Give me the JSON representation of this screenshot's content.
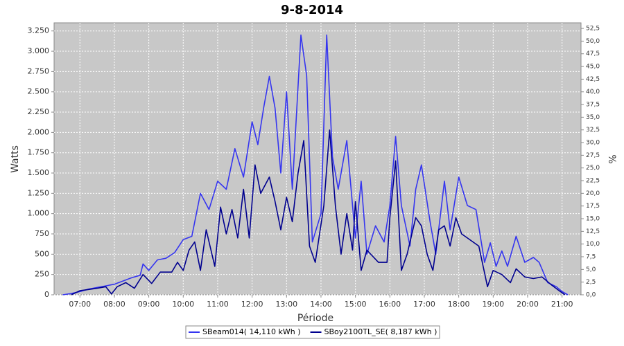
{
  "chart_data": {
    "type": "line",
    "title": "9-8-2014",
    "x_label": "Période",
    "y_label": "Watts",
    "y2_label": "%",
    "xlim": [
      "06:15",
      "21:33"
    ],
    "xticks": [
      "07:00",
      "08:00",
      "09:00",
      "10:00",
      "11:00",
      "12:00",
      "13:00",
      "14:00",
      "15:00",
      "16:00",
      "17:00",
      "18:00",
      "19:00",
      "20:00",
      "21:00"
    ],
    "ylim": [
      0,
      3350
    ],
    "yticks": [
      0,
      250,
      500,
      750,
      {
        "value": 1000,
        "label": "1.000"
      },
      {
        "value": 1250,
        "label": "1.250"
      },
      {
        "value": 1500,
        "label": "1.500"
      },
      {
        "value": 1750,
        "label": "1.750"
      },
      {
        "value": 2000,
        "label": "2.000"
      },
      {
        "value": 2250,
        "label": "2.250"
      },
      {
        "value": 2500,
        "label": "2.500"
      },
      {
        "value": 2750,
        "label": "2.750"
      },
      {
        "value": 3000,
        "label": "3.000"
      },
      {
        "value": 3250,
        "label": "3.250"
      }
    ],
    "y2lim": [
      0,
      53.6
    ],
    "y2ticks": [
      {
        "value": 0,
        "label": "0,0"
      },
      {
        "value": 2.5,
        "label": "2,5"
      },
      {
        "value": 5,
        "label": "5,0"
      },
      {
        "value": 7.5,
        "label": "7,5"
      },
      {
        "value": 10,
        "label": "10,0"
      },
      {
        "value": 12.5,
        "label": "12,5"
      },
      {
        "value": 15,
        "label": "15,0"
      },
      {
        "value": 17.5,
        "label": "17,5"
      },
      {
        "value": 20,
        "label": "20,0"
      },
      {
        "value": 22.5,
        "label": "22,5"
      },
      {
        "value": 25,
        "label": "25,0"
      },
      {
        "value": 27.5,
        "label": "27,5"
      },
      {
        "value": 30,
        "label": "30,0"
      },
      {
        "value": 32.5,
        "label": "32,5"
      },
      {
        "value": 35,
        "label": "35,0"
      },
      {
        "value": 37.5,
        "label": "37,5"
      },
      {
        "value": 40,
        "label": "40,0"
      },
      {
        "value": 42.5,
        "label": "42,5"
      },
      {
        "value": 45,
        "label": "45,0"
      },
      {
        "value": 47.5,
        "label": "47,5"
      },
      {
        "value": 50,
        "label": "50,0"
      },
      {
        "value": 52.5,
        "label": "52,5"
      }
    ],
    "grid": true,
    "legend": "bottom",
    "series": [
      {
        "name": "SBeam014( 14,110 kWh )",
        "color": "#3535f0",
        "x": [
          "06:30",
          "06:45",
          "07:00",
          "07:15",
          "07:30",
          "07:45",
          "08:00",
          "08:15",
          "08:30",
          "08:45",
          "08:50",
          "09:00",
          "09:15",
          "09:30",
          "09:45",
          "10:00",
          "10:15",
          "10:30",
          "10:45",
          "11:00",
          "11:15",
          "11:30",
          "11:45",
          "12:00",
          "12:10",
          "12:20",
          "12:30",
          "12:40",
          "12:50",
          "13:00",
          "13:10",
          "13:25",
          "13:35",
          "13:45",
          "14:00",
          "14:10",
          "14:20",
          "14:30",
          "14:45",
          "15:00",
          "15:10",
          "15:20",
          "15:35",
          "15:50",
          "16:00",
          "16:10",
          "16:20",
          "16:35",
          "16:45",
          "16:55",
          "17:10",
          "17:20",
          "17:35",
          "17:45",
          "18:00",
          "18:15",
          "18:30",
          "18:45",
          "18:55",
          "19:05",
          "19:15",
          "19:25",
          "19:40",
          "19:55",
          "20:10",
          "20:20",
          "20:35",
          "20:50",
          "21:00",
          "21:10"
        ],
        "values": [
          0,
          15,
          40,
          70,
          90,
          110,
          130,
          170,
          210,
          240,
          380,
          300,
          430,
          450,
          520,
          680,
          720,
          1250,
          1050,
          1400,
          1300,
          1800,
          1450,
          2130,
          1850,
          2300,
          2690,
          2300,
          1500,
          2500,
          1300,
          3200,
          2700,
          650,
          1000,
          3200,
          1700,
          1300,
          1900,
          700,
          1400,
          500,
          850,
          650,
          1100,
          1950,
          1100,
          600,
          1300,
          1600,
          900,
          500,
          1400,
          800,
          1450,
          1100,
          1050,
          400,
          640,
          350,
          540,
          350,
          720,
          400,
          460,
          400,
          150,
          100,
          40,
          0
        ]
      },
      {
        "name": "SBoy2100TL_SE( 8,187 kWh )",
        "color": "#00008f",
        "x": [
          "06:45",
          "07:00",
          "07:30",
          "07:45",
          "07:55",
          "08:05",
          "08:20",
          "08:35",
          "08:50",
          "09:05",
          "09:20",
          "09:40",
          "09:50",
          "10:00",
          "10:10",
          "10:20",
          "10:30",
          "10:40",
          "10:55",
          "11:05",
          "11:15",
          "11:25",
          "11:35",
          "11:45",
          "11:55",
          "12:05",
          "12:15",
          "12:30",
          "12:40",
          "12:50",
          "13:00",
          "13:10",
          "13:20",
          "13:30",
          "13:40",
          "13:50",
          "14:05",
          "14:15",
          "14:25",
          "14:35",
          "14:45",
          "14:55",
          "15:00",
          "15:10",
          "15:20",
          "15:40",
          "15:55",
          "16:00",
          "16:10",
          "16:20",
          "16:30",
          "16:45",
          "16:55",
          "17:05",
          "17:15",
          "17:25",
          "17:35",
          "17:45",
          "17:55",
          "18:05",
          "18:15",
          "18:35",
          "18:50",
          "19:00",
          "19:15",
          "19:30",
          "19:40",
          "19:55",
          "20:10",
          "20:25",
          "20:40",
          "20:55",
          "21:05"
        ],
        "values": [
          0,
          50,
          80,
          100,
          10,
          100,
          150,
          80,
          250,
          140,
          280,
          280,
          400,
          300,
          550,
          650,
          300,
          800,
          350,
          1080,
          750,
          1050,
          700,
          1300,
          700,
          1600,
          1250,
          1450,
          1150,
          800,
          1200,
          900,
          1500,
          1900,
          600,
          400,
          1100,
          2030,
          1100,
          500,
          1000,
          550,
          1150,
          300,
          550,
          400,
          400,
          950,
          1650,
          300,
          500,
          950,
          850,
          500,
          300,
          800,
          850,
          600,
          950,
          750,
          700,
          600,
          100,
          300,
          250,
          150,
          320,
          220,
          200,
          220,
          130,
          50,
          0
        ]
      }
    ]
  }
}
